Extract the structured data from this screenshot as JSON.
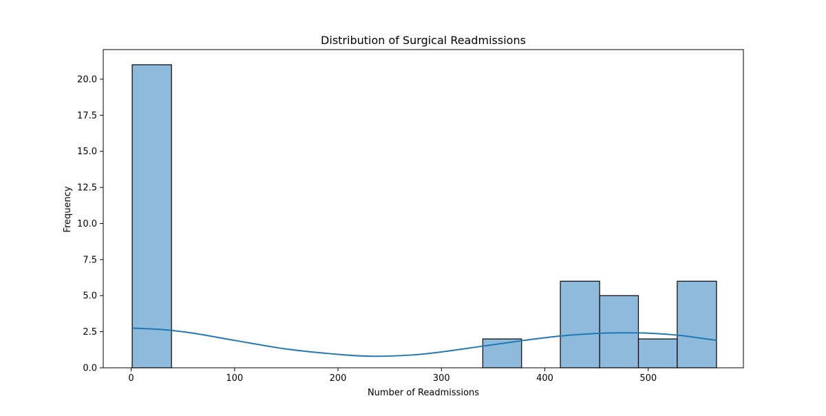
{
  "chart_data": {
    "type": "bar",
    "title": "Distribution of Surgical Readmissions",
    "xlabel": "Number of Readmissions",
    "ylabel": "Frequency",
    "xlim": [
      -27,
      592
    ],
    "ylim": [
      0,
      22.05
    ],
    "x_ticks": [
      0,
      100,
      200,
      300,
      400,
      500
    ],
    "y_ticks": [
      0.0,
      2.5,
      5.0,
      7.5,
      10.0,
      12.5,
      15.0,
      17.5,
      20.0
    ],
    "x_tick_labels": [
      "0",
      "100",
      "200",
      "300",
      "400",
      "500"
    ],
    "y_tick_labels": [
      "0.0",
      "2.5",
      "5.0",
      "7.5",
      "10.0",
      "12.5",
      "15.0",
      "17.5",
      "20.0"
    ],
    "bins": [
      {
        "start": 1,
        "end": 39,
        "count": 21
      },
      {
        "start": 39,
        "end": 76.5,
        "count": 0
      },
      {
        "start": 76.5,
        "end": 114,
        "count": 0
      },
      {
        "start": 114,
        "end": 152,
        "count": 0
      },
      {
        "start": 152,
        "end": 189.5,
        "count": 0
      },
      {
        "start": 189.5,
        "end": 227,
        "count": 0
      },
      {
        "start": 227,
        "end": 265,
        "count": 0
      },
      {
        "start": 265,
        "end": 302.5,
        "count": 0
      },
      {
        "start": 302.5,
        "end": 340,
        "count": 0
      },
      {
        "start": 340,
        "end": 377.5,
        "count": 2
      },
      {
        "start": 377.5,
        "end": 415,
        "count": 0
      },
      {
        "start": 415,
        "end": 453,
        "count": 6
      },
      {
        "start": 453,
        "end": 490.5,
        "count": 5
      },
      {
        "start": 490.5,
        "end": 528,
        "count": 2
      },
      {
        "start": 528,
        "end": 566,
        "count": 6
      }
    ],
    "kde": {
      "x": [
        1,
        30,
        60,
        100,
        150,
        200,
        233,
        270,
        300,
        340,
        380,
        415,
        450,
        475,
        500,
        530,
        566
      ],
      "y": [
        2.75,
        2.65,
        2.4,
        1.9,
        1.3,
        0.93,
        0.8,
        0.88,
        1.1,
        1.5,
        1.9,
        2.2,
        2.38,
        2.42,
        2.4,
        2.25,
        1.9
      ]
    },
    "grid": false,
    "colors": {
      "bar_fill": "#8ebadb",
      "bar_edge": "#000000",
      "kde_line": "#1f77b4"
    }
  }
}
